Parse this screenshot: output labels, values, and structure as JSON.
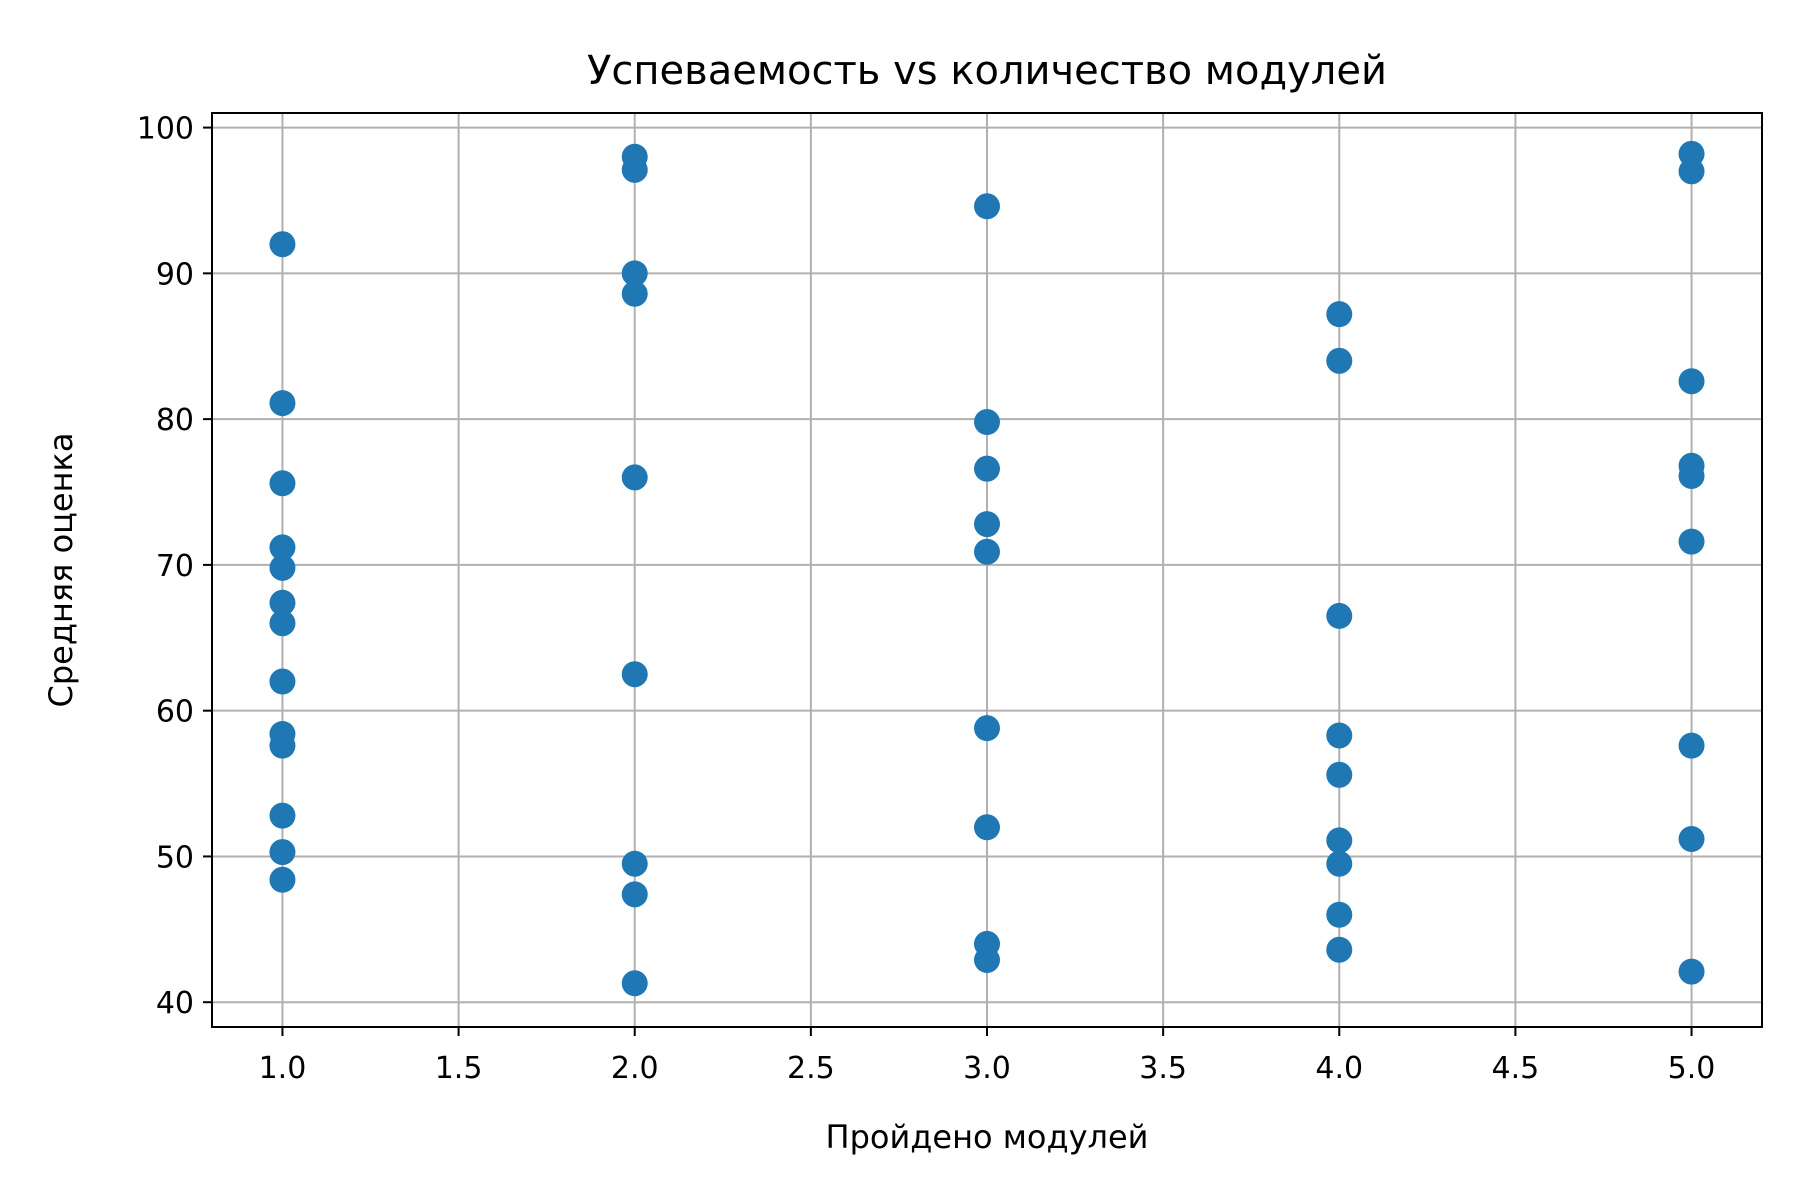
{
  "chart_data": {
    "type": "scatter",
    "title": "Успеваемость vs количество модулей",
    "xlabel": "Пройдено модулей",
    "ylabel": "Средняя оценка",
    "xlim": [
      0.8,
      5.2
    ],
    "ylim": [
      38.3,
      101.0
    ],
    "xticks": [
      1.0,
      1.5,
      2.0,
      2.5,
      3.0,
      3.5,
      4.0,
      4.5,
      5.0
    ],
    "xtick_labels": [
      "1.0",
      "1.5",
      "2.0",
      "2.5",
      "3.0",
      "3.5",
      "4.0",
      "4.5",
      "5.0"
    ],
    "yticks": [
      40,
      50,
      60,
      70,
      80,
      90,
      100
    ],
    "ytick_labels": [
      "40",
      "50",
      "60",
      "70",
      "80",
      "90",
      "100"
    ],
    "grid": true,
    "marker_color": "#1f77b4",
    "points": [
      {
        "x": 1,
        "y": 92.0
      },
      {
        "x": 1,
        "y": 81.1
      },
      {
        "x": 1,
        "y": 75.6
      },
      {
        "x": 1,
        "y": 71.2
      },
      {
        "x": 1,
        "y": 69.8
      },
      {
        "x": 1,
        "y": 67.4
      },
      {
        "x": 1,
        "y": 66.0
      },
      {
        "x": 1,
        "y": 62.0
      },
      {
        "x": 1,
        "y": 58.4
      },
      {
        "x": 1,
        "y": 57.6
      },
      {
        "x": 1,
        "y": 52.8
      },
      {
        "x": 1,
        "y": 50.3
      },
      {
        "x": 1,
        "y": 48.4
      },
      {
        "x": 2,
        "y": 98.0
      },
      {
        "x": 2,
        "y": 97.1
      },
      {
        "x": 2,
        "y": 90.0
      },
      {
        "x": 2,
        "y": 88.6
      },
      {
        "x": 2,
        "y": 76.0
      },
      {
        "x": 2,
        "y": 62.5
      },
      {
        "x": 2,
        "y": 49.5
      },
      {
        "x": 2,
        "y": 47.4
      },
      {
        "x": 2,
        "y": 41.3
      },
      {
        "x": 3,
        "y": 94.6
      },
      {
        "x": 3,
        "y": 79.8
      },
      {
        "x": 3,
        "y": 76.6
      },
      {
        "x": 3,
        "y": 72.8
      },
      {
        "x": 3,
        "y": 70.9
      },
      {
        "x": 3,
        "y": 58.8
      },
      {
        "x": 3,
        "y": 52.0
      },
      {
        "x": 3,
        "y": 44.0
      },
      {
        "x": 3,
        "y": 42.9
      },
      {
        "x": 4,
        "y": 87.2
      },
      {
        "x": 4,
        "y": 84.0
      },
      {
        "x": 4,
        "y": 66.5
      },
      {
        "x": 4,
        "y": 58.3
      },
      {
        "x": 4,
        "y": 55.6
      },
      {
        "x": 4,
        "y": 51.1
      },
      {
        "x": 4,
        "y": 49.5
      },
      {
        "x": 4,
        "y": 46.0
      },
      {
        "x": 4,
        "y": 43.6
      },
      {
        "x": 5,
        "y": 98.2
      },
      {
        "x": 5,
        "y": 97.0
      },
      {
        "x": 5,
        "y": 82.6
      },
      {
        "x": 5,
        "y": 76.8
      },
      {
        "x": 5,
        "y": 76.1
      },
      {
        "x": 5,
        "y": 71.6
      },
      {
        "x": 5,
        "y": 57.6
      },
      {
        "x": 5,
        "y": 51.2
      },
      {
        "x": 5,
        "y": 42.1
      }
    ]
  }
}
